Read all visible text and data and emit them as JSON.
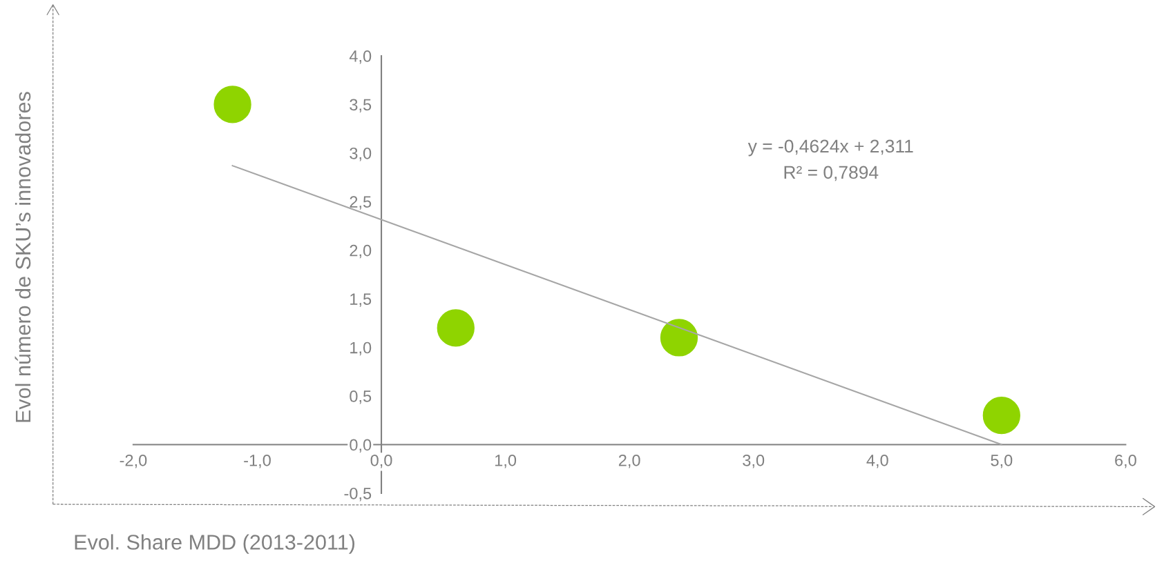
{
  "chart_data": {
    "type": "scatter",
    "xlabel": "Evol. Share MDD (2013-2011)",
    "ylabel": "Evol número de SKU’s innovadores",
    "annotations": [
      "y = -0,4624x + 2,311",
      "R² = 0,7894"
    ],
    "series": [
      {
        "color": "#8fd400",
        "x": [
          -1.2,
          0.6,
          2.4,
          5.0
        ],
        "values": [
          3.5,
          1.2,
          1.1,
          0.3
        ],
        "marker": "circle"
      },
      {
        "type": "line",
        "color": "#a6a6a6",
        "x": [
          -1.2,
          5.0
        ],
        "values": [
          2.87,
          0.0
        ],
        "line_style": "solid"
      }
    ],
    "xlim": [
      -2,
      6
    ],
    "ylim": [
      -0.5,
      4
    ],
    "xticks": [
      {
        "value": -2,
        "label": "-2,0"
      },
      {
        "value": -1,
        "label": "-1,0"
      },
      {
        "value": 0,
        "label": "0,0"
      },
      {
        "value": 1,
        "label": "1,0"
      },
      {
        "value": 2,
        "label": "2,0"
      },
      {
        "value": 3,
        "label": "3,0"
      },
      {
        "value": 4,
        "label": "4,0"
      },
      {
        "value": 5,
        "label": "5,0"
      },
      {
        "value": 6,
        "label": "6,0"
      }
    ],
    "yticks": [
      {
        "value": -0.5,
        "label": "-0,5"
      },
      {
        "value": 0,
        "label": "0,0"
      },
      {
        "value": 0.5,
        "label": "0,5"
      },
      {
        "value": 1,
        "label": "1,0"
      },
      {
        "value": 1.5,
        "label": "1,5"
      },
      {
        "value": 2,
        "label": "2,0"
      },
      {
        "value": 2.5,
        "label": "2,5"
      },
      {
        "value": 3,
        "label": "3,0"
      },
      {
        "value": 3.5,
        "label": "3,5"
      },
      {
        "value": 4,
        "label": "4,0"
      }
    ],
    "grid": false,
    "legend": false
  }
}
